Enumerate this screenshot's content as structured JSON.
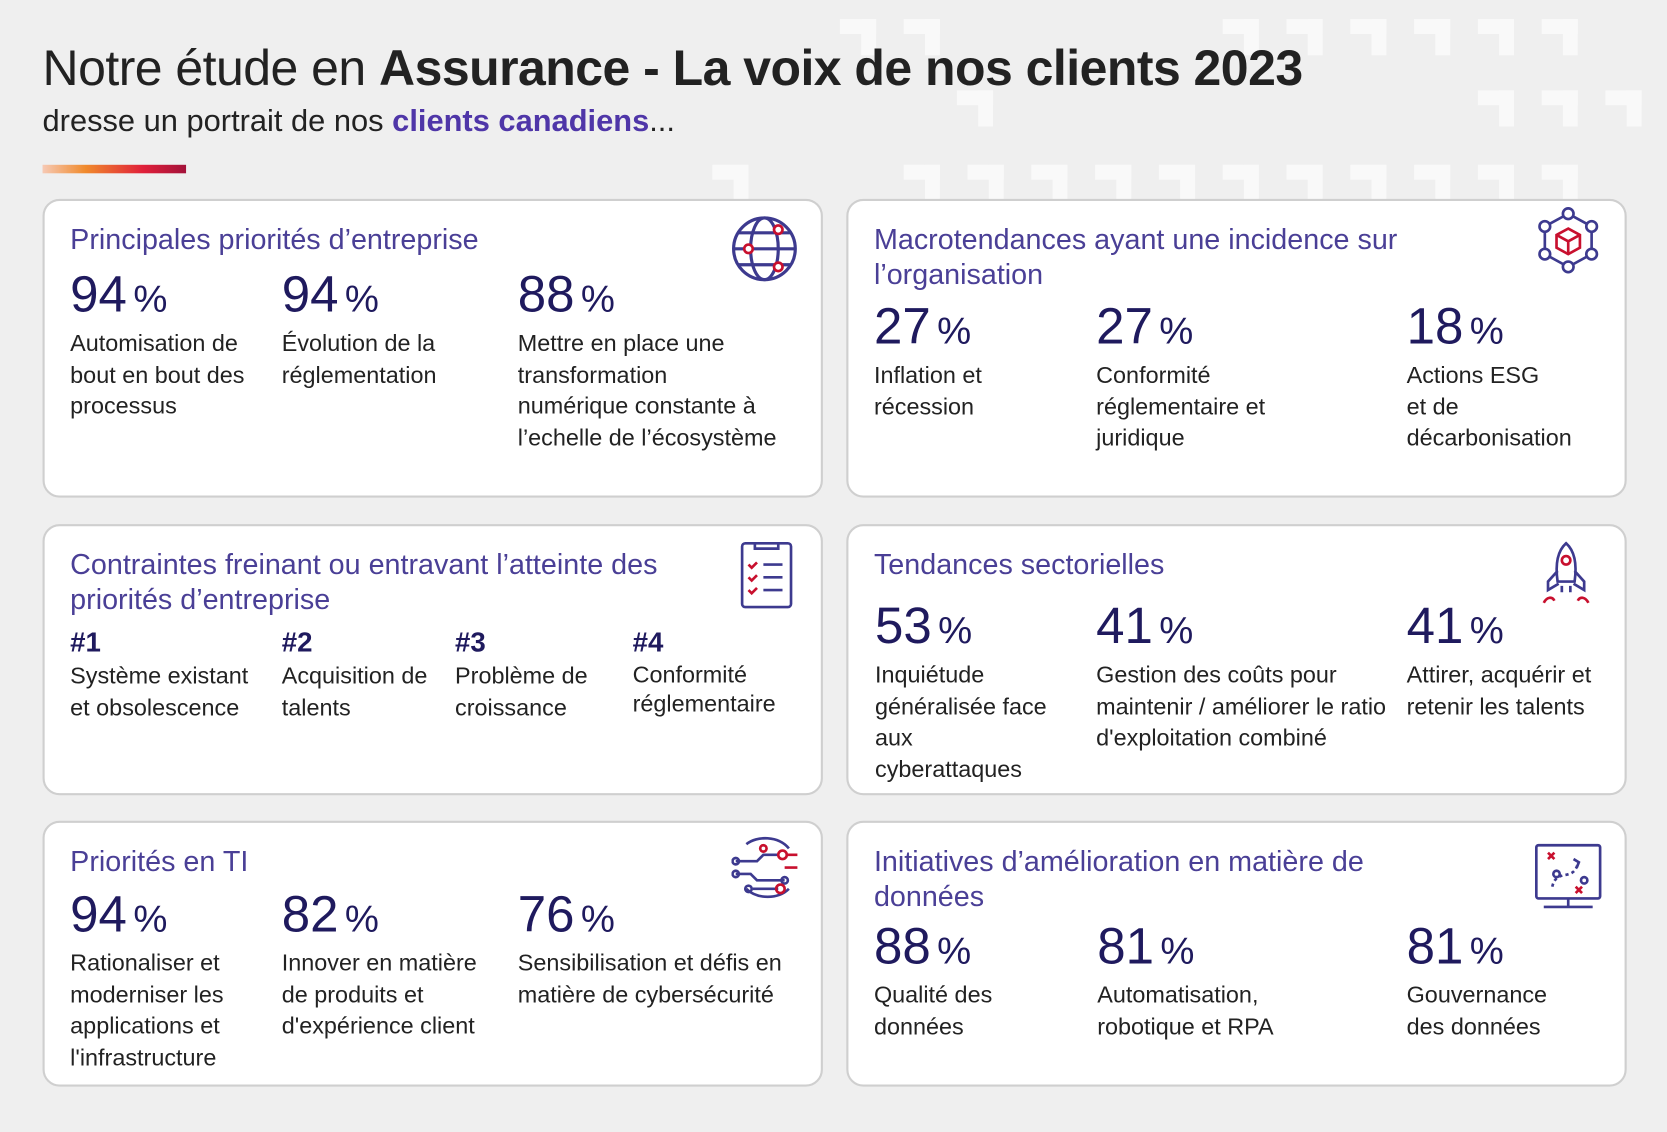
{
  "header": {
    "title_light": "Notre étude en ",
    "title_bold": "Assurance - La voix de nos clients 2023",
    "subtitle_prefix": "dresse un portrait de nos ",
    "subtitle_highlight": "clients canadiens",
    "subtitle_suffix": "..."
  },
  "colors": {
    "title_purple": "#4a3f96",
    "number_navy": "#1f1a5e",
    "highlight": "#4f36a8",
    "accent_red": "#c8102e"
  },
  "cards": [
    {
      "title": "Principales priorités d’entreprise",
      "icon": "globe-icon",
      "stats": [
        {
          "value": "94",
          "unit": "%",
          "label": "Automisation de bout en bout des processus"
        },
        {
          "value": "94",
          "unit": "%",
          "label": "Évolution de la réglementation"
        },
        {
          "value": "88",
          "unit": "%",
          "label": "Mettre en place une transformation numérique constante à l’echelle de l’écosystème"
        }
      ]
    },
    {
      "title": "Macrotendances ayant une incidence sur l’organisation",
      "icon": "network-cube-icon",
      "stats": [
        {
          "value": "27",
          "unit": "%",
          "label": "Inflation et récession"
        },
        {
          "value": "27",
          "unit": "%",
          "label": "Conformité réglementaire et juridique"
        },
        {
          "value": "18",
          "unit": "%",
          "label": "Actions ESG et de décarbonisation"
        }
      ]
    },
    {
      "title": "Contraintes freinant ou entravant l’atteinte des priorités d’entreprise",
      "icon": "checklist-icon",
      "stats": [
        {
          "rank": "#1",
          "label": "Système existant et obsolescence"
        },
        {
          "rank": "#2",
          "label": "Acquisition de talents"
        },
        {
          "rank": "#3",
          "label": "Problème de croissance"
        },
        {
          "rank": "#4",
          "label": "Conformité réglementaire"
        }
      ]
    },
    {
      "title": "Tendances sectorielles",
      "icon": "rocket-icon",
      "stats": [
        {
          "value": "53",
          "unit": "%",
          "label": "Inquiétude généralisée face aux cyberattaques"
        },
        {
          "value": "41",
          "unit": "%",
          "label": "Gestion des coûts pour maintenir / améliorer le ratio d'exploitation combiné"
        },
        {
          "value": "41",
          "unit": "%",
          "label": "Attirer, acquérir et retenir les talents"
        }
      ]
    },
    {
      "title": "Priorités en TI",
      "icon": "circuit-icon",
      "stats": [
        {
          "value": "94",
          "unit": "%",
          "label": "Rationaliser et moderniser les applications et l'infrastructure"
        },
        {
          "value": "82",
          "unit": "%",
          "label": "Innover en matière de produits et d'expérience client"
        },
        {
          "value": "76",
          "unit": "%",
          "label": "Sensibilisation et défis en matière de cybersécurité"
        }
      ]
    },
    {
      "title": "Initiatives d’amélioration en matière de données",
      "icon": "strategy-board-icon",
      "stats": [
        {
          "value": "88",
          "unit": "%",
          "label": "Qualité des données"
        },
        {
          "value": "81",
          "unit": "%",
          "label": "Automatisation, robotique et RPA"
        },
        {
          "value": "81",
          "unit": "%",
          "label": "Gouvernance des données"
        }
      ]
    }
  ]
}
